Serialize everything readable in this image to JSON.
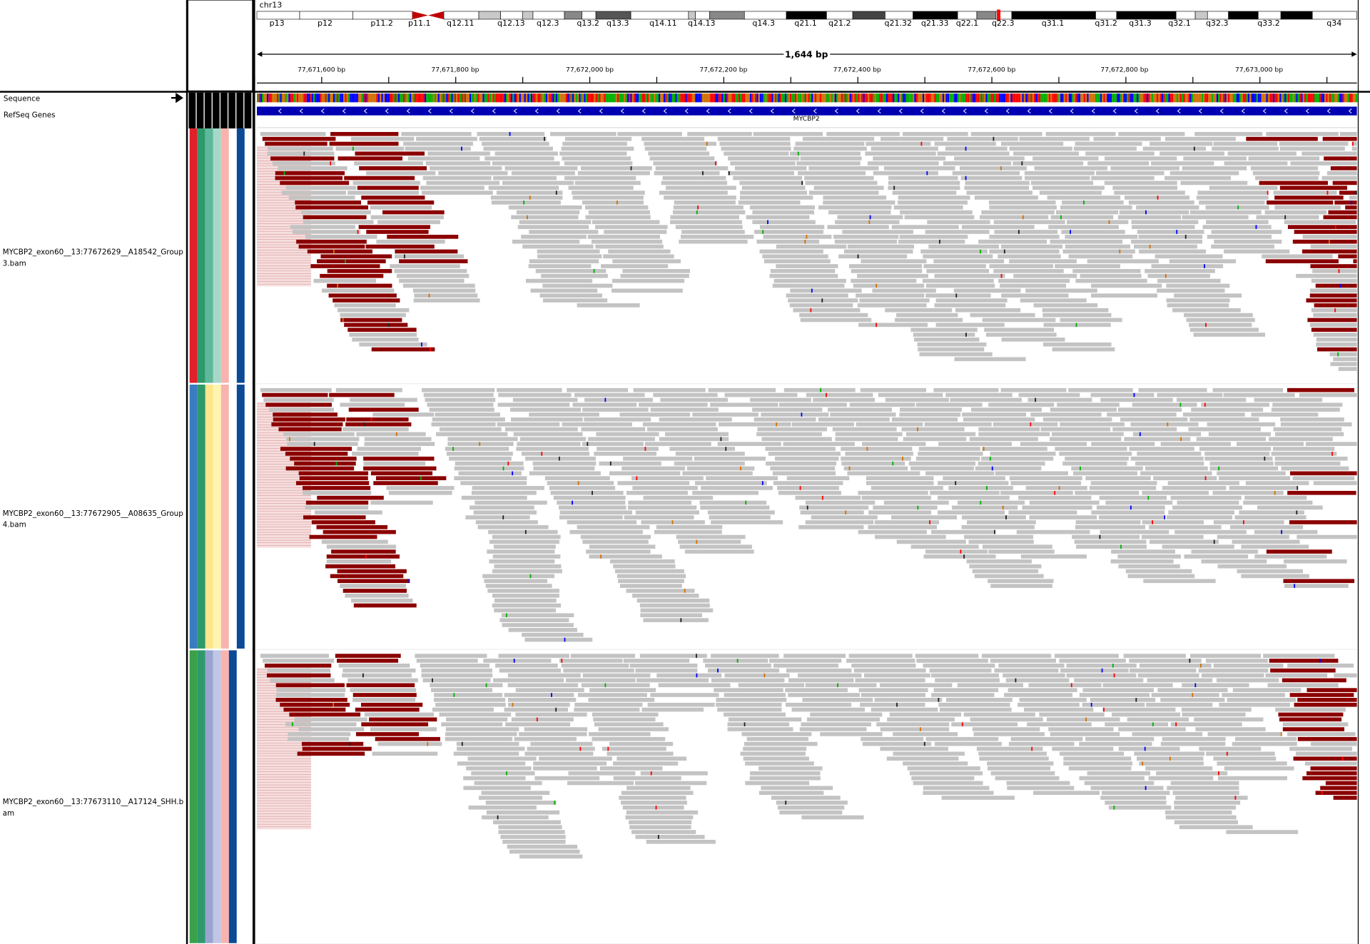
{
  "header": {
    "chromosome": "chr13",
    "bands": [
      "p13",
      "p12",
      "p11.2",
      "p11.1",
      "q12.11",
      "q12.13",
      "q12.3",
      "q13.2",
      "q13.3",
      "q14.11",
      "q14.13",
      "q14.3",
      "q21.1",
      "q21.2",
      "q21.32",
      "q21.33",
      "q22.1",
      "q22.3",
      "q31.1",
      "q31.2",
      "q31.3",
      "q32.1",
      "q32.3",
      "q33.2",
      "q34"
    ],
    "span": "1,644 bp",
    "positions": [
      "77,671,600 bp",
      "77,671,800 bp",
      "77,672,000 bp",
      "77,672,200 bp",
      "77,672,400 bp",
      "77,672,600 bp",
      "77,672,800 bp",
      "77,673,000 bp"
    ]
  },
  "tracks": {
    "sequence": "Sequence",
    "refseq": "RefSeq Genes",
    "gene": "MYCBP2"
  },
  "alignments": [
    {
      "name": "MYCBP2_exon60__13:77672629__A18542_Group3.bam"
    },
    {
      "name": "MYCBP2_exon60__13:77672905__A08635_Group4.bam"
    },
    {
      "name": "MYCBP2_exon60__13:77673110__A17124_SHH.bam"
    }
  ]
}
